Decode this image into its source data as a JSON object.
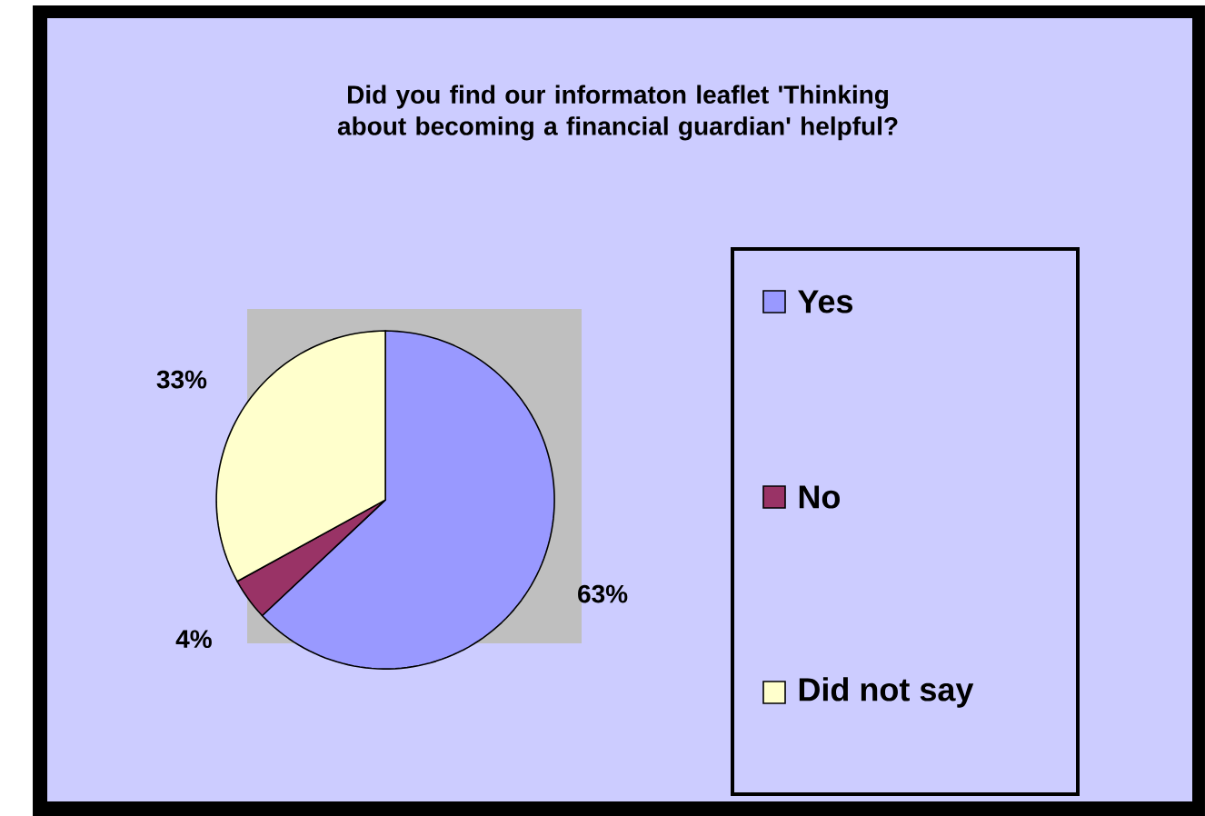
{
  "chart_data": {
    "type": "pie",
    "title": "Did you find our informaton leaflet 'Thinking about becoming a financial guardian' helpful?",
    "categories": [
      "Yes",
      "No",
      "Did not say"
    ],
    "values": [
      63,
      4,
      33
    ],
    "colors": [
      "#9999ff",
      "#993366",
      "#ffffcc"
    ],
    "value_labels": [
      "63%",
      "4%",
      "33%"
    ],
    "legend": "right"
  }
}
